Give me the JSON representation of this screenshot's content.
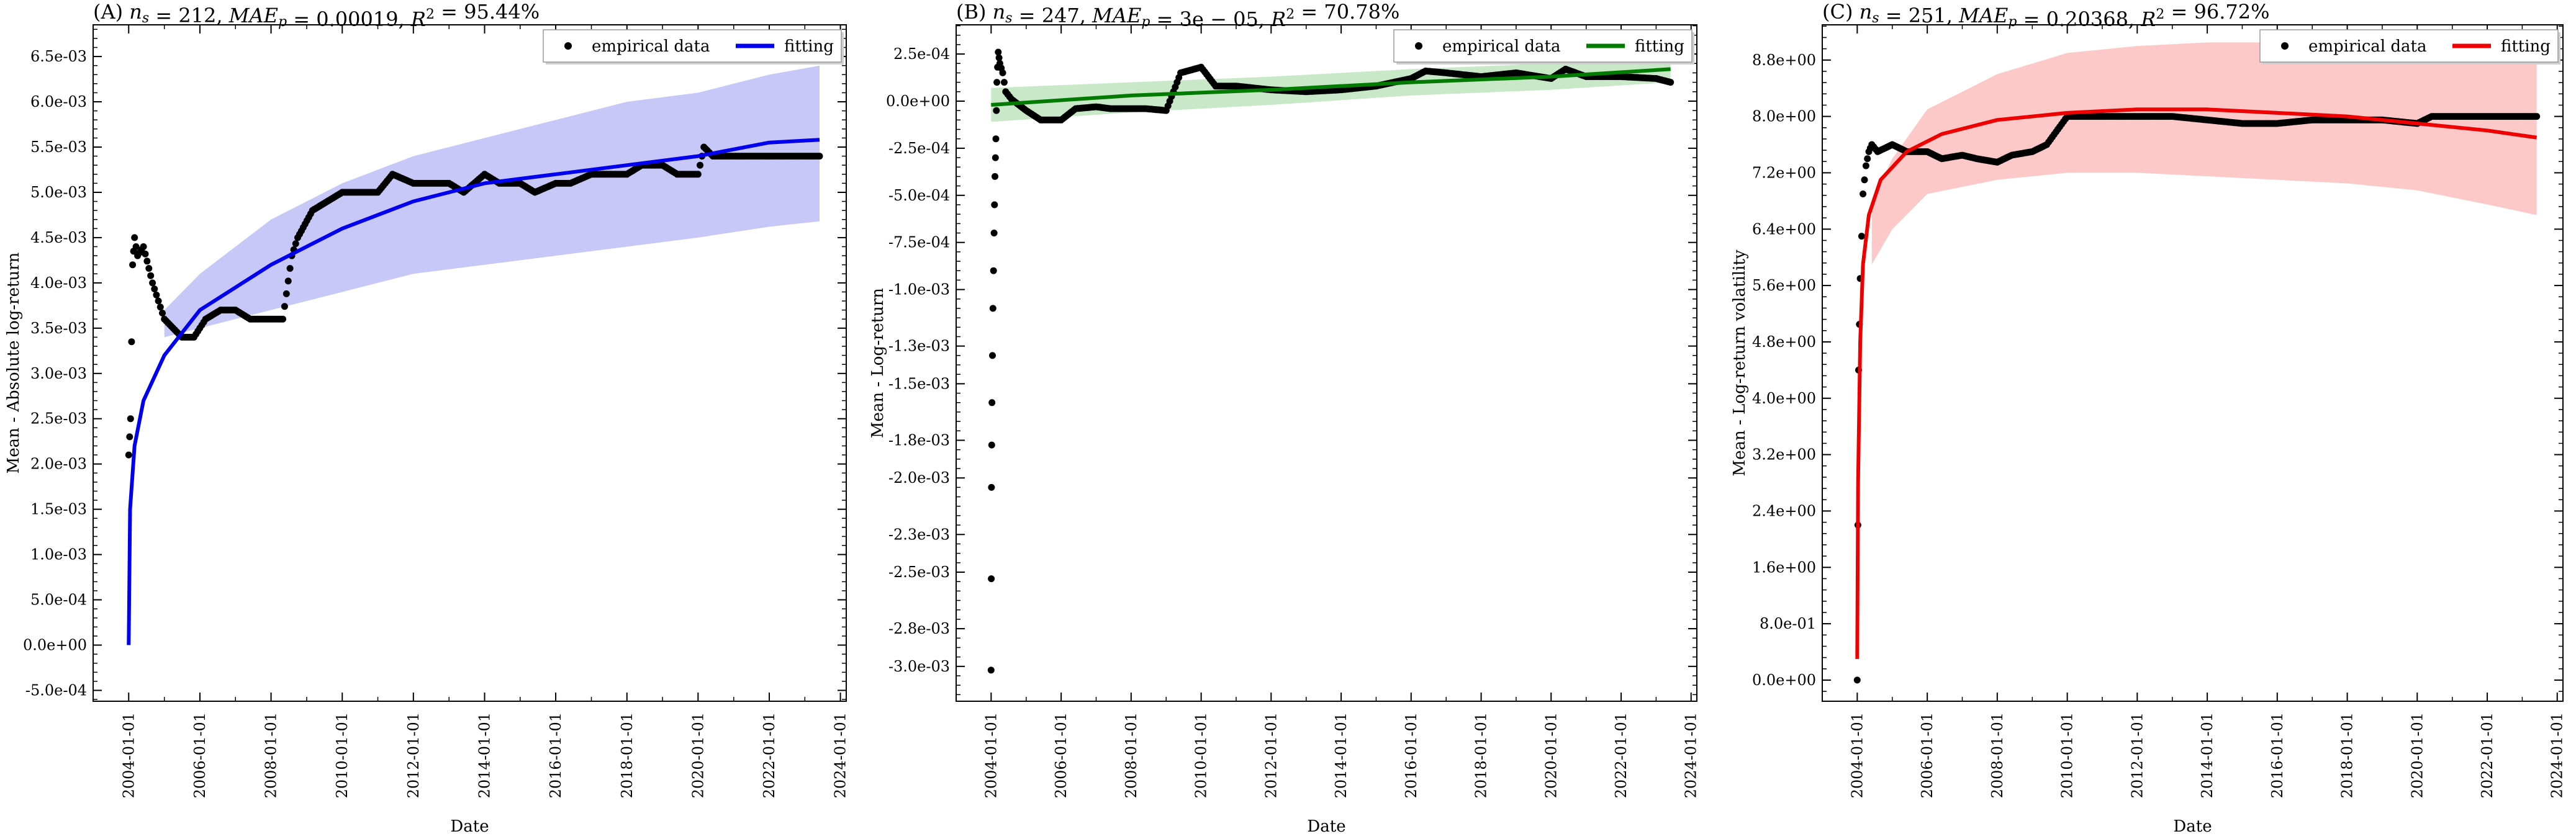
{
  "chart_data": [
    {
      "type": "scatter",
      "panel": "A",
      "title": "(A) n_s = 212, MAE_p = 0.00019, R^2 = 95.44%",
      "title_parts": {
        "label": "(A) ",
        "ns": "212",
        "mae": "0.00019",
        "r2": "95.44%"
      },
      "xlabel": "Date",
      "ylabel": "Mean - Absolute log-return",
      "x_tick_labels": [
        "2004-01-01",
        "2006-01-01",
        "2008-01-01",
        "2010-01-01",
        "2012-01-01",
        "2014-01-01",
        "2016-01-01",
        "2018-01-01",
        "2020-01-01",
        "2022-01-01",
        "2024-01-01"
      ],
      "y_tick_labels": [
        "-5.0e-04",
        "0.0e+00",
        "5.0e-04",
        "1.0e-03",
        "1.5e-03",
        "2.0e-03",
        "2.5e-03",
        "3.0e-03",
        "3.5e-03",
        "4.0e-03",
        "4.5e-03",
        "5.0e-03",
        "5.5e-03",
        "6.0e-03",
        "6.5e-03"
      ],
      "xlim": [
        "2003-01-01",
        "2024-03-01"
      ],
      "ylim": [
        -0.00062,
        0.00685
      ],
      "legend": {
        "position": "top-right",
        "entries": [
          "empirical data",
          "fitting"
        ]
      },
      "fit_color": "#0000ee",
      "band_color": "#c8c8f8",
      "fit": {
        "name": "fitting",
        "x": [
          "2004-01-01",
          "2004-01-15",
          "2004-03-01",
          "2004-06-01",
          "2005-01-01",
          "2006-01-01",
          "2008-01-01",
          "2010-01-01",
          "2012-01-01",
          "2014-01-01",
          "2016-01-01",
          "2018-01-01",
          "2020-01-01",
          "2022-01-01",
          "2023-06-01"
        ],
        "y": [
          0.0,
          0.0015,
          0.0022,
          0.0027,
          0.0032,
          0.0037,
          0.0042,
          0.0046,
          0.0049,
          0.0051,
          0.0052,
          0.0053,
          0.0054,
          0.00555,
          0.00558
        ]
      },
      "band": {
        "x": [
          "2005-01-01",
          "2006-01-01",
          "2008-01-01",
          "2010-01-01",
          "2012-01-01",
          "2014-01-01",
          "2016-01-01",
          "2018-01-01",
          "2020-01-01",
          "2022-01-01",
          "2023-06-01"
        ],
        "upper": [
          0.0037,
          0.0041,
          0.0047,
          0.0051,
          0.0054,
          0.0056,
          0.0058,
          0.006,
          0.0061,
          0.0063,
          0.0064
        ],
        "lower": [
          0.0034,
          0.0035,
          0.0037,
          0.0039,
          0.0041,
          0.0042,
          0.0043,
          0.0044,
          0.0045,
          0.00462,
          0.00468
        ]
      },
      "empirical": {
        "name": "empirical data",
        "x": [
          "2004-01-01",
          "2004-01-20",
          "2004-02-10",
          "2004-03-01",
          "2004-04-01",
          "2004-06-01",
          "2004-09-01",
          "2005-01-01",
          "2005-04-01",
          "2005-07-01",
          "2005-11-01",
          "2006-03-01",
          "2006-08-01",
          "2007-01-01",
          "2007-06-01",
          "2008-01-01",
          "2008-05-01",
          "2008-08-01",
          "2008-10-01",
          "2009-03-01",
          "2009-08-01",
          "2010-01-01",
          "2010-06-01",
          "2011-01-01",
          "2011-06-01",
          "2012-01-01",
          "2012-06-01",
          "2013-01-01",
          "2013-06-01",
          "2014-01-01",
          "2014-06-01",
          "2015-01-01",
          "2015-06-01",
          "2016-01-01",
          "2016-06-01",
          "2017-01-01",
          "2017-06-01",
          "2018-01-01",
          "2018-06-01",
          "2019-01-01",
          "2019-06-01",
          "2020-01-01",
          "2020-03-01",
          "2020-06-01",
          "2021-01-01",
          "2021-06-01",
          "2022-01-01",
          "2022-06-01",
          "2023-01-01",
          "2023-06-01"
        ],
        "y": [
          0.0021,
          0.0025,
          0.0042,
          0.0045,
          0.0043,
          0.0044,
          0.004,
          0.0036,
          0.0035,
          0.0034,
          0.0034,
          0.0036,
          0.0037,
          0.0037,
          0.0036,
          0.0036,
          0.0036,
          0.0043,
          0.0045,
          0.0048,
          0.0049,
          0.005,
          0.005,
          0.005,
          0.0052,
          0.0051,
          0.0051,
          0.0051,
          0.005,
          0.0052,
          0.0051,
          0.0051,
          0.005,
          0.0051,
          0.0051,
          0.0052,
          0.0052,
          0.0052,
          0.0053,
          0.0053,
          0.0052,
          0.0052,
          0.0055,
          0.0054,
          0.0054,
          0.0054,
          0.0054,
          0.0054,
          0.0054,
          0.0054
        ]
      }
    },
    {
      "type": "scatter",
      "panel": "B",
      "title": "(B) n_s = 247, MAE_p = 3e-05, R^2 = 70.78%",
      "title_parts": {
        "label": "(B) ",
        "ns": "247",
        "mae": "3e − 05",
        "r2": "70.78%"
      },
      "xlabel": "Date",
      "ylabel": "Mean - Log-return",
      "x_tick_labels": [
        "2004-01-01",
        "2006-01-01",
        "2008-01-01",
        "2010-01-01",
        "2012-01-01",
        "2014-01-01",
        "2016-01-01",
        "2018-01-01",
        "2020-01-01",
        "2022-01-01",
        "2024-01-01"
      ],
      "y_tick_labels": [
        "-3.0e-03",
        "-2.8e-03",
        "-2.5e-03",
        "-2.3e-03",
        "-2.0e-03",
        "-1.8e-03",
        "-1.5e-03",
        "-1.3e-03",
        "-1.0e-03",
        "-7.5e-04",
        "-5.0e-04",
        "-2.5e-04",
        "0.0e+00",
        "2.5e-04"
      ],
      "xlim": [
        "2003-01-01",
        "2024-03-01"
      ],
      "ylim": [
        -0.003185,
        0.000405
      ],
      "legend": {
        "position": "top-right",
        "entries": [
          "empirical data",
          "fitting"
        ]
      },
      "fit_color": "#007a00",
      "band_color": "#c8e8c8",
      "fit": {
        "name": "fitting",
        "x": [
          "2004-01-01",
          "2008-01-01",
          "2012-01-01",
          "2016-01-01",
          "2020-01-01",
          "2023-06-01"
        ],
        "y": [
          -2e-05,
          3e-05,
          6e-05,
          0.0001,
          0.00013,
          0.00017
        ]
      },
      "band": {
        "x": [
          "2004-01-01",
          "2008-01-01",
          "2012-01-01",
          "2016-01-01",
          "2020-01-01",
          "2023-06-01"
        ],
        "upper": [
          7e-05,
          0.0001,
          0.00013,
          0.00017,
          0.0002,
          0.00024
        ],
        "lower": [
          -0.00011,
          -6e-05,
          -2e-05,
          3e-05,
          6e-05,
          0.0001
        ]
      },
      "empirical": {
        "name": "empirical data",
        "x": [
          "2004-01-01",
          "2004-01-05",
          "2004-01-10",
          "2004-01-20",
          "2004-02-01",
          "2004-02-10",
          "2004-02-20",
          "2004-03-01",
          "2004-03-15",
          "2004-04-01",
          "2004-05-01",
          "2004-06-01",
          "2004-08-01",
          "2005-01-01",
          "2005-06-01",
          "2006-01-01",
          "2006-06-01",
          "2007-01-01",
          "2007-06-01",
          "2008-01-01",
          "2008-06-01",
          "2009-01-01",
          "2009-06-01",
          "2010-01-01",
          "2010-06-01",
          "2011-01-01",
          "2012-01-01",
          "2013-01-01",
          "2014-01-01",
          "2015-01-01",
          "2016-01-01",
          "2016-06-01",
          "2017-01-01",
          "2018-01-01",
          "2019-01-01",
          "2020-01-01",
          "2020-06-01",
          "2021-01-01",
          "2022-01-01",
          "2023-01-01",
          "2023-06-01"
        ],
        "y": [
          -0.00302,
          -0.00205,
          -0.0016,
          -0.0011,
          -0.0007,
          -0.0004,
          -0.0002,
          0.0001,
          0.00026,
          0.0002,
          0.00015,
          5e-05,
          1e-05,
          -5e-05,
          -0.0001,
          -0.0001,
          -4e-05,
          -3e-05,
          -4e-05,
          -4e-05,
          -4e-05,
          -5e-05,
          0.00015,
          0.00018,
          8e-05,
          8e-05,
          6e-05,
          5e-05,
          6e-05,
          8e-05,
          0.00012,
          0.00016,
          0.00015,
          0.00013,
          0.00015,
          0.00012,
          0.00017,
          0.00013,
          0.00013,
          0.00012,
          0.0001
        ]
      }
    },
    {
      "type": "scatter",
      "panel": "C",
      "title": "(C) n_s = 251, MAE_p = 0.20368, R^2 = 96.72%",
      "title_parts": {
        "label": "(C) ",
        "ns": "251",
        "mae": "0.20368",
        "r2": "96.72%"
      },
      "xlabel": "Date",
      "ylabel": "Mean - Log-return volatility",
      "x_tick_labels": [
        "2004-01-01",
        "2006-01-01",
        "2008-01-01",
        "2010-01-01",
        "2012-01-01",
        "2014-01-01",
        "2016-01-01",
        "2018-01-01",
        "2020-01-01",
        "2022-01-01",
        "2024-01-01"
      ],
      "y_tick_labels": [
        "0.0e+00",
        "8.0e-01",
        "1.6e+00",
        "2.4e+00",
        "3.2e+00",
        "4.0e+00",
        "4.8e+00",
        "5.6e+00",
        "6.4e+00",
        "7.2e+00",
        "8.0e+00",
        "8.8e+00"
      ],
      "xlim": [
        "2003-01-01",
        "2024-03-01"
      ],
      "ylim": [
        -0.3,
        9.3
      ],
      "legend": {
        "position": "top-right",
        "entries": [
          "empirical data",
          "fitting"
        ]
      },
      "fit_color": "#ee0000",
      "band_color": "#fcc8c8",
      "fit": {
        "name": "fitting",
        "x": [
          "2004-01-01",
          "2004-01-10",
          "2004-02-01",
          "2004-03-01",
          "2004-05-01",
          "2004-09-01",
          "2005-06-01",
          "2006-06-01",
          "2008-01-01",
          "2010-01-01",
          "2012-01-01",
          "2014-01-01",
          "2016-01-01",
          "2018-01-01",
          "2020-01-01",
          "2022-01-01",
          "2023-06-01"
        ],
        "y": [
          0.3,
          2.8,
          4.8,
          5.9,
          6.6,
          7.1,
          7.5,
          7.75,
          7.95,
          8.05,
          8.1,
          8.1,
          8.05,
          8.0,
          7.9,
          7.8,
          7.7
        ]
      },
      "band": {
        "x": [
          "2004-06-01",
          "2005-01-01",
          "2006-01-01",
          "2008-01-01",
          "2010-01-01",
          "2012-01-01",
          "2014-01-01",
          "2016-01-01",
          "2018-01-01",
          "2020-01-01",
          "2022-01-01",
          "2023-06-01"
        ],
        "upper": [
          6.8,
          7.4,
          8.1,
          8.6,
          8.9,
          9.0,
          9.05,
          9.05,
          9.05,
          9.05,
          9.05,
          9.05
        ],
        "lower": [
          5.9,
          6.4,
          6.9,
          7.1,
          7.2,
          7.2,
          7.15,
          7.1,
          7.05,
          6.95,
          6.75,
          6.6
        ]
      },
      "empirical": {
        "name": "empirical data",
        "x": [
          "2004-01-01",
          "2004-01-15",
          "2004-02-01",
          "2004-03-01",
          "2004-04-01",
          "2004-05-01",
          "2004-06-01",
          "2004-08-01",
          "2005-01-01",
          "2005-06-01",
          "2006-01-01",
          "2006-06-01",
          "2007-01-01",
          "2007-06-01",
          "2008-01-01",
          "2008-06-01",
          "2009-01-01",
          "2009-06-01",
          "2010-01-01",
          "2011-01-01",
          "2012-01-01",
          "2013-01-01",
          "2014-01-01",
          "2015-01-01",
          "2016-01-01",
          "2017-01-01",
          "2018-01-01",
          "2019-01-01",
          "2020-01-01",
          "2020-06-01",
          "2021-01-01",
          "2022-01-01",
          "2023-01-01",
          "2023-06-01"
        ],
        "y": [
          0.0,
          4.4,
          5.7,
          6.9,
          7.3,
          7.5,
          7.6,
          7.5,
          7.6,
          7.5,
          7.5,
          7.4,
          7.45,
          7.4,
          7.35,
          7.45,
          7.5,
          7.6,
          8.0,
          8.0,
          8.0,
          8.0,
          7.95,
          7.9,
          7.9,
          7.95,
          7.95,
          7.95,
          7.9,
          8.0,
          8.0,
          8.0,
          8.0,
          8.0
        ]
      }
    }
  ]
}
